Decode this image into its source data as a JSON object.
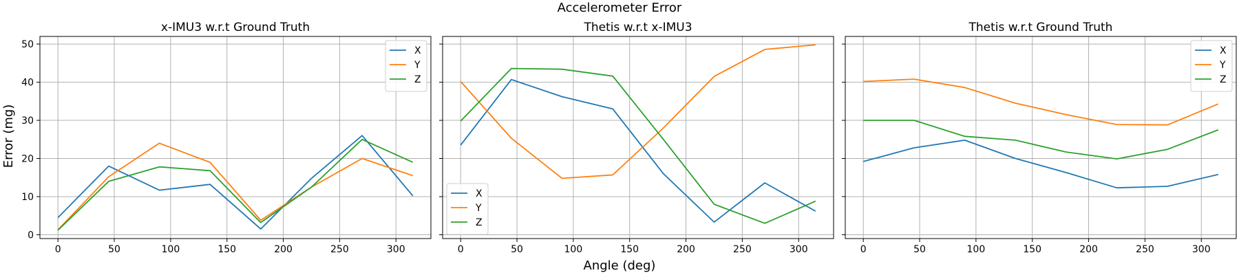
{
  "figure": {
    "suptitle": "Accelerometer Error",
    "xlabel": "Angle (deg)",
    "ylabel": "Error (mg)"
  },
  "colors": {
    "X": "#1f77b4",
    "Y": "#ff7f0e",
    "Z": "#2ca02c",
    "grid": "#b0b0b0"
  },
  "chart_data": [
    {
      "type": "line",
      "title": "x-IMU3 w.r.t Ground Truth",
      "xlabel": "",
      "ylabel": "Error (mg)",
      "x": [
        0,
        45,
        90,
        135,
        180,
        225,
        270,
        315
      ],
      "xlim": [
        -16,
        331
      ],
      "ylim": [
        -1,
        52
      ],
      "xticks": [
        0,
        50,
        100,
        150,
        200,
        250,
        300
      ],
      "yticks": [
        0,
        10,
        20,
        30,
        40,
        50
      ],
      "show_yticklabels": true,
      "grid": true,
      "legend": "upper right",
      "series": [
        {
          "name": "X",
          "values": [
            4.5,
            18,
            11.7,
            13.2,
            1.5,
            14.8,
            26,
            10.2
          ]
        },
        {
          "name": "Y",
          "values": [
            1.3,
            15.2,
            24,
            19,
            3.8,
            12.5,
            20,
            15.5
          ]
        },
        {
          "name": "Z",
          "values": [
            1.2,
            14,
            17.8,
            16.8,
            3.2,
            12.5,
            25,
            19
          ]
        }
      ]
    },
    {
      "type": "line",
      "title": "Thetis w.r.t x-IMU3",
      "xlabel": "Angle (deg)",
      "ylabel": "",
      "x": [
        0,
        45,
        90,
        135,
        180,
        225,
        270,
        315
      ],
      "xlim": [
        -16,
        331
      ],
      "ylim": [
        -1,
        52
      ],
      "xticks": [
        0,
        50,
        100,
        150,
        200,
        250,
        300
      ],
      "yticks": [
        0,
        10,
        20,
        30,
        40,
        50
      ],
      "show_yticklabels": false,
      "grid": true,
      "legend": "lower left",
      "series": [
        {
          "name": "X",
          "values": [
            23.5,
            40.7,
            36.2,
            33,
            16,
            3.3,
            13.6,
            6.2
          ]
        },
        {
          "name": "Y",
          "values": [
            40.2,
            25.3,
            14.8,
            15.7,
            28,
            41.5,
            48.6,
            49.8
          ]
        },
        {
          "name": "Z",
          "values": [
            29.8,
            43.6,
            43.4,
            41.6,
            25,
            8,
            3,
            8.8
          ]
        }
      ]
    },
    {
      "type": "line",
      "title": "Thetis w.r.t Ground Truth",
      "xlabel": "",
      "ylabel": "",
      "x": [
        0,
        45,
        90,
        135,
        180,
        225,
        270,
        315
      ],
      "xlim": [
        -16,
        331
      ],
      "ylim": [
        -1,
        52
      ],
      "xticks": [
        0,
        50,
        100,
        150,
        200,
        250,
        300
      ],
      "yticks": [
        0,
        10,
        20,
        30,
        40,
        50
      ],
      "show_yticklabels": false,
      "grid": true,
      "legend": "upper right",
      "series": [
        {
          "name": "X",
          "values": [
            19.2,
            22.8,
            24.8,
            20,
            16.3,
            12.3,
            12.7,
            15.8
          ]
        },
        {
          "name": "Y",
          "values": [
            40.2,
            40.8,
            38.6,
            34.5,
            31.5,
            28.9,
            28.8,
            34.3
          ]
        },
        {
          "name": "Z",
          "values": [
            30,
            30,
            25.8,
            24.8,
            21.7,
            19.9,
            22.4,
            27.5
          ]
        }
      ]
    }
  ]
}
